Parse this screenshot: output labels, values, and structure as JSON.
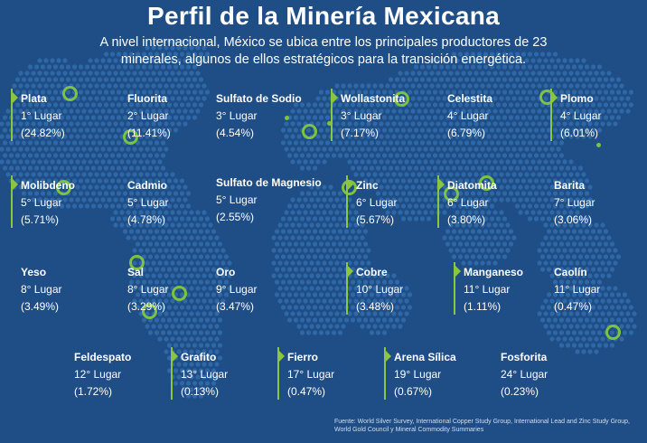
{
  "header": {
    "title": "Perfil de la Minería Mexicana",
    "subtitle": "A nivel internacional, México se ubica entre los principales productores de 23 minerales, algunos de ellos estratégicos para la transición energética."
  },
  "minerals": [
    {
      "name": "Plata",
      "rank": "1° Lugar",
      "share": "(24.82%)",
      "flagged": true
    },
    {
      "name": "Fluorita",
      "rank": "2° Lugar",
      "share": "(11.41%)",
      "flagged": false
    },
    {
      "name": "Sulfato de Sodio",
      "rank": "3° Lugar",
      "share": "(4.54%)",
      "flagged": false
    },
    {
      "name": "Wollastonita",
      "rank": "3° Lugar",
      "share": "(7.17%)",
      "flagged": true
    },
    {
      "name": "Celestita",
      "rank": "4° Lugar",
      "share": "(6.79%)",
      "flagged": false
    },
    {
      "name": "Plomo",
      "rank": "4° Lugar",
      "share": "(6.01%)",
      "flagged": true
    },
    {
      "name": "Molibdeno",
      "rank": "5° Lugar",
      "share": "(5.71%)",
      "flagged": true
    },
    {
      "name": "Cadmio",
      "rank": "5° Lugar",
      "share": "(4.78%)",
      "flagged": false
    },
    {
      "name": "Sulfato de Magnesio",
      "rank": "5° Lugar",
      "share": "(2.55%)",
      "flagged": false
    },
    {
      "name": "Zinc",
      "rank": "6° Lugar",
      "share": "(5.67%)",
      "flagged": true
    },
    {
      "name": "Diatomita",
      "rank": "6° Lugar",
      "share": "(3.80%)",
      "flagged": true
    },
    {
      "name": "Barita",
      "rank": "7° Lugar",
      "share": "(3.06%)",
      "flagged": false
    },
    {
      "name": "Yeso",
      "rank": "8° Lugar",
      "share": "(3.49%)",
      "flagged": false
    },
    {
      "name": "Sal",
      "rank": "8° Lugar",
      "share": "(3.29%)",
      "flagged": false
    },
    {
      "name": "Oro",
      "rank": "9° Lugar",
      "share": "(3.47%)",
      "flagged": false
    },
    {
      "name": "Cobre",
      "rank": "10° Lugar",
      "share": "(3.48%)",
      "flagged": true
    },
    {
      "name": "Manganeso",
      "rank": "11° Lugar",
      "share": "(1.11%)",
      "flagged": true
    },
    {
      "name": "Caolín",
      "rank": "11° Lugar",
      "share": "(0.47%)",
      "flagged": false
    },
    {
      "name": "Feldespato",
      "rank": "12° Lugar",
      "share": "(1.72%)",
      "flagged": false
    },
    {
      "name": "Grafito",
      "rank": "13° Lugar",
      "share": "(0.13%)",
      "flagged": true
    },
    {
      "name": "Fierro",
      "rank": "17° Lugar",
      "share": "(0.47%)",
      "flagged": true
    },
    {
      "name": "Arena Sílica",
      "rank": "19° Lugar",
      "share": "(0.67%)",
      "flagged": true
    },
    {
      "name": "Fosforita",
      "rank": "24° Lugar",
      "share": "(0.23%)",
      "flagged": false
    }
  ],
  "source": "Fuente: World Silver Survey, International Copper Study Group, International Lead and Zinc Study Group, World Gold Council y Mineral Commodity Summaries",
  "colors": {
    "background": "#1f4d85",
    "map_dots": "#2f68a6",
    "accent": "#7dc242",
    "text": "#ffffff"
  }
}
